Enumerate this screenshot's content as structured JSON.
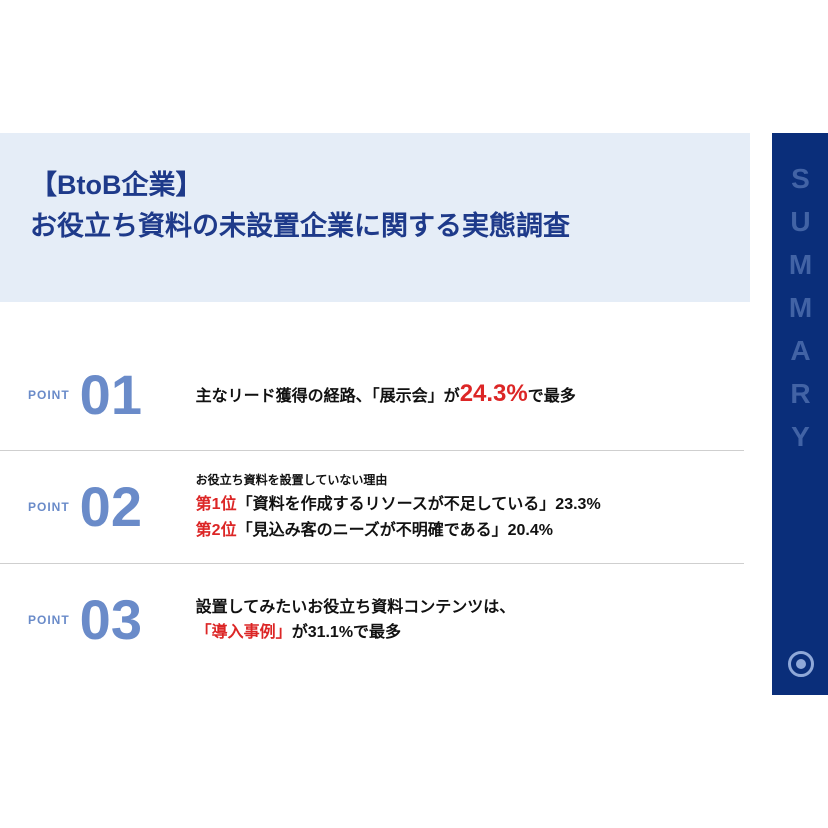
{
  "header": {
    "line1": "【BtoB企業】",
    "line2": "お役立ち資料の未設置企業に関する実態調査"
  },
  "summary_label": "SUMMARY",
  "colors": {
    "header_bg": "#e5edf7",
    "title_color": "#1e3a8a",
    "summary_bg": "#0a2e7a",
    "summary_text": "#5a7ab8",
    "point_number": "#6a8bc9",
    "red": "#dc2626",
    "body_text": "#111111",
    "divider": "#cfcfcf"
  },
  "points": [
    {
      "label": "POINT",
      "num": "01",
      "pre": "主なリード獲得の経路、「展示会」が",
      "highlight": "24.3%",
      "post": "で最多"
    },
    {
      "label": "POINT",
      "num": "02",
      "subtitle": "お役立ち資料を設置していない理由",
      "rank1_label": "第1位",
      "rank1_text": "「資料を作成するリソースが不足している」23.3%",
      "rank2_label": "第2位",
      "rank2_text": "「見込み客のニーズが不明確である」20.4%"
    },
    {
      "label": "POINT",
      "num": "03",
      "line1": "設置してみたいお役立ち資料コンテンツは、",
      "highlight": "「導入事例」",
      "post": "が31.1%で最多"
    }
  ]
}
